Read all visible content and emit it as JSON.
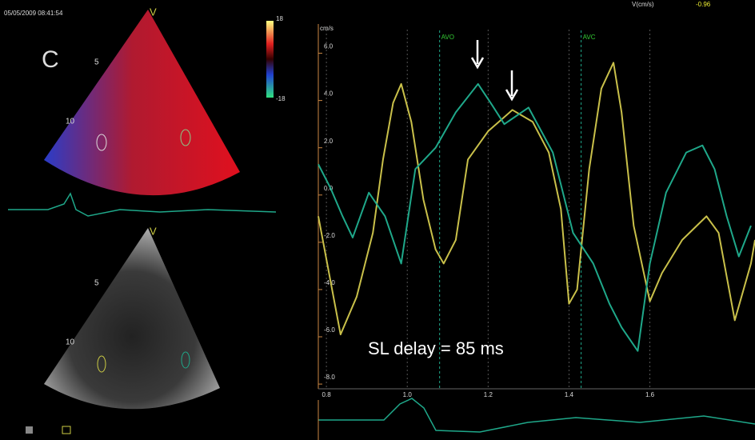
{
  "left_panel": {
    "timestamp": "05/05/2009 08:41:54",
    "panel_letter": "C",
    "color_marker": "V",
    "bw_marker": "V",
    "depth_top": [
      "5",
      "10"
    ],
    "depth_bottom": [
      "5",
      "10"
    ],
    "scale_max": "18",
    "scale_min": "-18"
  },
  "chart_data": {
    "type": "line",
    "y_label": "cm/s",
    "header_label": "V(cm/s)",
    "header_value": "-0.96",
    "annotation": "SL delay = 85 ms",
    "markers": [
      {
        "label": "AVO",
        "x": 1.08
      },
      {
        "label": "AVC",
        "x": 1.43
      }
    ],
    "xlim": [
      0.78,
      1.86
    ],
    "xticks": [
      0.8,
      {
        "value": 1,
        "label": "1.0"
      },
      1.2,
      1.4,
      1.6
    ],
    "ylim": [
      -8.2,
      7
    ],
    "yticks": [
      {
        "value": 6,
        "label": "6.0"
      },
      {
        "value": 4,
        "label": "4.0"
      },
      {
        "value": 2,
        "label": "2.0"
      },
      {
        "value": 0,
        "label": "0.0"
      },
      {
        "value": -2,
        "label": "-2.0"
      },
      {
        "value": -4,
        "label": "-4.0"
      },
      {
        "value": -6,
        "label": "-6.0"
      },
      {
        "value": -8,
        "label": "-8.0"
      }
    ],
    "grid": true,
    "series": [
      {
        "color": "#c9c04a",
        "x": [
          0.78,
          0.835,
          0.875,
          0.915,
          0.94,
          0.965,
          0.985,
          1.01,
          1.04,
          1.07,
          1.09,
          1.12,
          1.15,
          1.2,
          1.26,
          1.31,
          1.35,
          1.38,
          1.4,
          1.42,
          1.45,
          1.48,
          1.51,
          1.53,
          1.56,
          1.6,
          1.63,
          1.68,
          1.74,
          1.77,
          1.81,
          1.85,
          1.86
        ],
        "values": [
          -0.9,
          -5.9,
          -4.3,
          -1.6,
          1.5,
          3.9,
          4.7,
          3.1,
          -0.2,
          -2.3,
          -2.9,
          -1.9,
          1.5,
          2.7,
          3.6,
          3.1,
          1.8,
          -0.6,
          -4.6,
          -4.0,
          1.1,
          4.5,
          5.6,
          3.5,
          -1.3,
          -4.5,
          -3.3,
          -1.9,
          -0.9,
          -1.6,
          -5.3,
          -2.9,
          -1.9
        ]
      },
      {
        "color": "#1fa88a",
        "x": [
          0.78,
          0.81,
          0.84,
          0.865,
          0.905,
          0.945,
          0.985,
          1.02,
          1.07,
          1.12,
          1.175,
          1.21,
          1.24,
          1.3,
          1.36,
          1.41,
          1.46,
          1.5,
          1.53,
          1.57,
          1.6,
          1.64,
          1.69,
          1.73,
          1.76,
          1.79,
          1.82,
          1.85
        ],
        "values": [
          1.3,
          0.3,
          -0.9,
          -1.8,
          0.1,
          -0.9,
          -2.9,
          1.1,
          2.0,
          3.5,
          4.7,
          3.8,
          3.0,
          3.7,
          1.8,
          -1.6,
          -2.9,
          -4.6,
          -5.6,
          -6.6,
          -2.9,
          0.1,
          1.8,
          2.1,
          1.1,
          -0.9,
          -2.6,
          -1.3
        ]
      }
    ]
  }
}
